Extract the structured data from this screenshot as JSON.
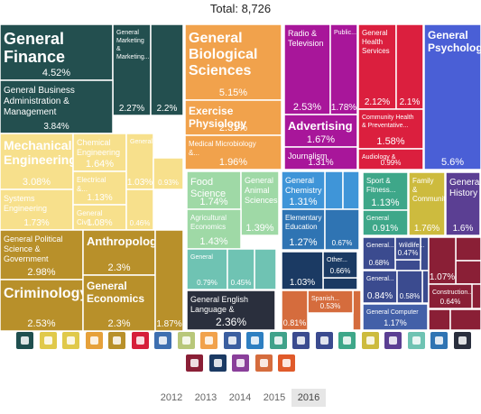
{
  "header": {
    "total_label": "Total: 8,726"
  },
  "years": [
    "2012",
    "2013",
    "2014",
    "2015",
    "2016"
  ],
  "active_year": "2016",
  "category_icons": [
    "person-icon",
    "art-icon",
    "science-icon",
    "dna-icon",
    "document-icon",
    "health-cross-icon",
    "chat-bubble-icon",
    "agriculture-icon",
    "theater-icon",
    "book-icon",
    "globe-icon",
    "graduation-cap-icon",
    "arrows-icon",
    "engineering-icon",
    "shoe-icon",
    "wheelchair-icon",
    "trend-chart-icon",
    "recycle-icon",
    "pi-icon",
    "computer-icon",
    "building-icon",
    "question-icon",
    "network-icon",
    "spiral-icon",
    "map-icon"
  ],
  "chart_data": {
    "type": "treemap",
    "title": "Total: 8,726",
    "cells": [
      {
        "id": "gen-fin",
        "name": "General Finance",
        "pct": "4.52%",
        "group": "business"
      },
      {
        "id": "gen-mkt",
        "name": "General Marketing & Marketing...",
        "pct": "2.27%",
        "group": "business"
      },
      {
        "id": "biz-c2",
        "name": "",
        "pct": "2.2%",
        "group": "business"
      },
      {
        "id": "gen-biz",
        "name": "General Business Administration & Management",
        "pct": "3.84%",
        "group": "business"
      },
      {
        "id": "mech-eng",
        "name": "Mechanical Engineering",
        "pct": "3.08%",
        "group": "engineering"
      },
      {
        "id": "sys-eng",
        "name": "Systems Engineering",
        "pct": "1.73%",
        "group": "engineering"
      },
      {
        "id": "chem-eng",
        "name": "Chemical Engineering",
        "pct": "1.64%",
        "group": "engineering"
      },
      {
        "id": "elec-eng",
        "name": "Electrical &...",
        "pct": "1.13%",
        "group": "engineering"
      },
      {
        "id": "gen-civ",
        "name": "General Civil...",
        "pct": "1.08%",
        "group": "engineering"
      },
      {
        "id": "gen-eng2",
        "name": "General...",
        "pct": "1.03%",
        "group": "engineering"
      },
      {
        "id": "eng-s1",
        "name": "",
        "pct": "0.93%",
        "group": "engineering"
      },
      {
        "id": "eng-s2",
        "name": "",
        "pct": "0.46%",
        "group": "engineering"
      },
      {
        "id": "gen-pol",
        "name": "General Political Science & Government",
        "pct": "2.98%",
        "group": "social"
      },
      {
        "id": "criminology",
        "name": "Criminology",
        "pct": "2.53%",
        "group": "social"
      },
      {
        "id": "anthropology",
        "name": "Anthropology",
        "pct": "2.3%",
        "group": "social"
      },
      {
        "id": "gen-econ",
        "name": "General Economics",
        "pct": "2.3%",
        "group": "social"
      },
      {
        "id": "soc-s1",
        "name": "",
        "pct": "1.87%",
        "group": "social"
      },
      {
        "id": "gen-bio",
        "name": "General Biological Sciences",
        "pct": "5.15%",
        "group": "biology"
      },
      {
        "id": "ex-phys",
        "name": "Exercise Physiology",
        "pct": "2.31%",
        "group": "biology"
      },
      {
        "id": "med-micro",
        "name": "Medical Microbiology &...",
        "pct": "1.96%",
        "group": "biology"
      },
      {
        "id": "radio-tv",
        "name": "Radio & Television",
        "pct": "2.53%",
        "group": "comm"
      },
      {
        "id": "public",
        "name": "Public...",
        "pct": "1.78%",
        "group": "comm"
      },
      {
        "id": "advertising",
        "name": "Advertising",
        "pct": "1.67%",
        "group": "comm"
      },
      {
        "id": "journalism",
        "name": "Journalism",
        "pct": "1.31%",
        "group": "comm"
      },
      {
        "id": "gen-health",
        "name": "General Health Services",
        "pct": "2.12%",
        "group": "health"
      },
      {
        "id": "hlt-s1",
        "name": "",
        "pct": "2.1%",
        "group": "health"
      },
      {
        "id": "comm-health",
        "name": "Community Health & Preventative...",
        "pct": "1.58%",
        "group": "health"
      },
      {
        "id": "audiology",
        "name": "Audiology & Speech-...",
        "pct": "0.99%",
        "group": "health"
      },
      {
        "id": "gen-psych",
        "name": "General Psychology",
        "pct": "5.6%",
        "group": "psych"
      },
      {
        "id": "food-sci",
        "name": "Food Science",
        "pct": "1.74%",
        "group": "agri"
      },
      {
        "id": "gen-animal",
        "name": "General Animal Sciences",
        "pct": "1.39%",
        "group": "agri"
      },
      {
        "id": "agri-econ",
        "name": "Agricultural Economics",
        "pct": "1.43%",
        "group": "agri"
      },
      {
        "id": "gen-fine",
        "name": "General Fine...",
        "pct": "0.79%",
        "group": "arts"
      },
      {
        "id": "arts-s1",
        "name": "",
        "pct": "0.45%",
        "group": "arts"
      },
      {
        "id": "gen-chem",
        "name": "General Chemistry",
        "pct": "1.31%",
        "group": "physsci"
      },
      {
        "id": "elem-edu",
        "name": "Elementary Education &...",
        "pct": "1.27%",
        "group": "education"
      },
      {
        "id": "edu-s1",
        "name": "",
        "pct": "0.67%",
        "group": "education"
      },
      {
        "id": "sport-fit",
        "name": "Sport & Fitness...",
        "pct": "1.13%",
        "group": "recreation"
      },
      {
        "id": "gen-parks",
        "name": "General Parks...",
        "pct": "0.91%",
        "group": "recreation"
      },
      {
        "id": "family-comm",
        "name": "Family & Community Services",
        "pct": "1.76%",
        "group": "family"
      },
      {
        "id": "gen-history",
        "name": "General History",
        "pct": "1.6%",
        "group": "history"
      },
      {
        "id": "gen-english",
        "name": "General English Language & Literature",
        "pct": "2.36%",
        "group": "english"
      },
      {
        "id": "ph-s1",
        "name": "",
        "pct": "1.03%",
        "group": "physics"
      },
      {
        "id": "other",
        "name": "Other...",
        "pct": "0.66%",
        "group": "physics"
      },
      {
        "id": "spanish",
        "name": "Spanish...",
        "pct": "0.53%",
        "group": "lang"
      },
      {
        "id": "lang-s1",
        "name": "",
        "pct": "0.81%",
        "group": "lang"
      },
      {
        "id": "gen-pub",
        "name": "General...",
        "pct": "0.68%",
        "group": "public"
      },
      {
        "id": "wildlife",
        "name": "Wildlife...",
        "pct": "0.47%",
        "group": "public"
      },
      {
        "id": "gen-pub2",
        "name": "General...",
        "pct": "0.84%",
        "group": "public"
      },
      {
        "id": "pub-s1",
        "name": "",
        "pct": "0.58%",
        "group": "public"
      },
      {
        "id": "gen-comp",
        "name": "General Computer &...",
        "pct": "1.17%",
        "group": "computing"
      },
      {
        "id": "constr-s1",
        "name": "",
        "pct": "1.07%",
        "group": "construction"
      },
      {
        "id": "construction",
        "name": "Construction...",
        "pct": "0.64%",
        "group": "construction"
      }
    ]
  }
}
